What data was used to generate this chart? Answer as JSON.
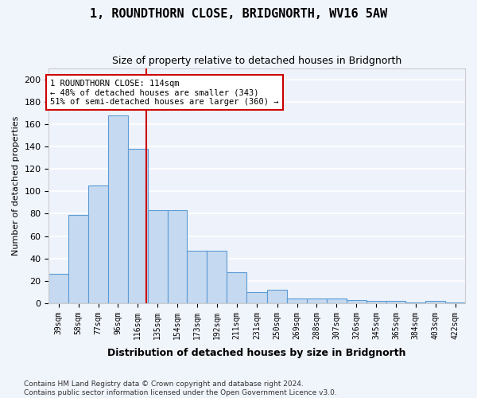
{
  "title": "1, ROUNDTHORN CLOSE, BRIDGNORTH, WV16 5AW",
  "subtitle": "Size of property relative to detached houses in Bridgnorth",
  "xlabel": "Distribution of detached houses by size in Bridgnorth",
  "ylabel": "Number of detached properties",
  "bar_color": "#c5d9f0",
  "bar_edge_color": "#5b9bd5",
  "background_color": "#eef3fb",
  "grid_color": "#ffffff",
  "categories": [
    "39sqm",
    "58sqm",
    "77sqm",
    "96sqm",
    "116sqm",
    "135sqm",
    "154sqm",
    "173sqm",
    "192sqm",
    "211sqm",
    "231sqm",
    "250sqm",
    "269sqm",
    "288sqm",
    "307sqm",
    "326sqm",
    "345sqm",
    "365sqm",
    "384sqm",
    "403sqm",
    "422sqm"
  ],
  "bar_values": [
    26,
    79,
    105,
    168,
    138,
    83,
    83,
    47,
    47,
    28,
    10,
    12,
    4,
    4,
    4,
    3,
    2,
    2,
    1,
    2,
    1
  ],
  "bin_edges": [
    20.5,
    39.5,
    58.5,
    77.5,
    96.5,
    115.5,
    134.5,
    153.5,
    172.5,
    191.5,
    210.5,
    230.5,
    249.5,
    268.5,
    287.5,
    306.5,
    325.5,
    344.5,
    363.5,
    382.5,
    401.5,
    420.5
  ],
  "property_size": 114,
  "red_line_color": "#cc0000",
  "annotation_text": "1 ROUNDTHORN CLOSE: 114sqm\n← 48% of detached houses are smaller (343)\n51% of semi-detached houses are larger (360) →",
  "annotation_box_color": "#ffffff",
  "annotation_border_color": "#cc0000",
  "ylim": [
    0,
    210
  ],
  "yticks": [
    0,
    20,
    40,
    60,
    80,
    100,
    120,
    140,
    160,
    180,
    200
  ],
  "footer": "Contains HM Land Registry data © Crown copyright and database right 2024.\nContains public sector information licensed under the Open Government Licence v3.0.",
  "fig_width": 6.0,
  "fig_height": 5.0
}
